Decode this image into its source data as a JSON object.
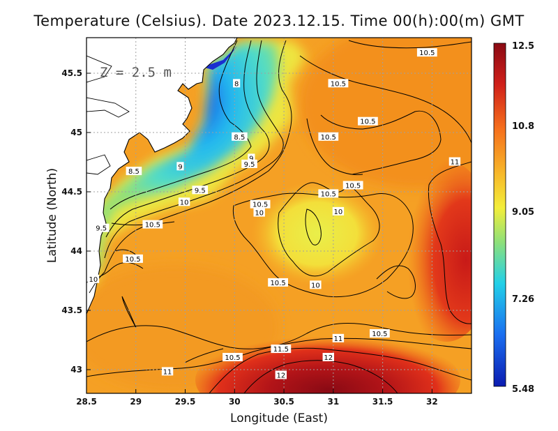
{
  "title": "Temperature (Celsius). Date 2023.12.15. Time 00(h):00(m) GMT",
  "depth_label": "Z = 2.5 m",
  "colors": {
    "background": "#ffffff",
    "land": "#ffffff",
    "coast": "#000000",
    "grid": "#9a9a9a",
    "contour": "#000000",
    "cold": "#0b1bb0",
    "cyan": "#22c8e8",
    "green": "#8ee07a",
    "yellow": "#f3e83a",
    "orange": "#f7a020",
    "warm": "#f06a1a",
    "hot": "#d0201a",
    "deep": "#8a0a14"
  },
  "chart_data": {
    "type": "heatmap",
    "xlabel": "Longitude (East)",
    "ylabel": "Latitude (North)",
    "xlim": [
      28.5,
      32.4
    ],
    "ylim": [
      42.8,
      45.8
    ],
    "x_ticks": [
      "28.5",
      "29",
      "29.5",
      "30",
      "30.5",
      "31",
      "31.5",
      "32"
    ],
    "x_tick_values": [
      28.5,
      29,
      29.5,
      30,
      30.5,
      31,
      31.5,
      32
    ],
    "y_ticks": [
      "43",
      "43.5",
      "44",
      "44.5",
      "45",
      "45.5"
    ],
    "y_tick_values": [
      43,
      43.5,
      44,
      44.5,
      45,
      45.5
    ],
    "grid": true,
    "colorbar": {
      "labels": [
        "12.5",
        "10.8",
        "9.05",
        "7.26",
        "5.48"
      ],
      "values": [
        12.5,
        10.8,
        9.05,
        7.26,
        5.48
      ],
      "min": 5.48,
      "max": 12.5,
      "placement": "right"
    },
    "contour_labels": [
      {
        "text": "10.5",
        "lon": 31.95,
        "lat": 45.67
      },
      {
        "text": "10.5",
        "lon": 31.05,
        "lat": 45.41
      },
      {
        "text": "10.5",
        "lon": 31.35,
        "lat": 45.09
      },
      {
        "text": "10.5",
        "lon": 30.95,
        "lat": 44.96
      },
      {
        "text": "11",
        "lon": 32.23,
        "lat": 44.75
      },
      {
        "text": "10.5",
        "lon": 31.2,
        "lat": 44.55
      },
      {
        "text": "10.5",
        "lon": 30.95,
        "lat": 44.48
      },
      {
        "text": "10",
        "lon": 30.25,
        "lat": 44.32
      },
      {
        "text": "10",
        "lon": 31.05,
        "lat": 44.33
      },
      {
        "text": "10.5",
        "lon": 30.26,
        "lat": 44.39
      },
      {
        "text": "8",
        "lon": 30.02,
        "lat": 45.41
      },
      {
        "text": "8.5",
        "lon": 30.05,
        "lat": 44.96
      },
      {
        "text": "9",
        "lon": 30.17,
        "lat": 44.78
      },
      {
        "text": "9.5",
        "lon": 30.15,
        "lat": 44.73
      },
      {
        "text": "9",
        "lon": 29.45,
        "lat": 44.71
      },
      {
        "text": "8.5",
        "lon": 28.98,
        "lat": 44.67
      },
      {
        "text": "9.5",
        "lon": 29.65,
        "lat": 44.51
      },
      {
        "text": "10",
        "lon": 29.49,
        "lat": 44.41
      },
      {
        "text": "10.5",
        "lon": 29.17,
        "lat": 44.22
      },
      {
        "text": "9.5",
        "lon": 28.65,
        "lat": 44.19
      },
      {
        "text": "10.5",
        "lon": 28.97,
        "lat": 43.93
      },
      {
        "text": "10",
        "lon": 28.57,
        "lat": 43.76
      },
      {
        "text": "10.5",
        "lon": 30.44,
        "lat": 43.73
      },
      {
        "text": "10",
        "lon": 30.82,
        "lat": 43.71
      },
      {
        "text": "10.5",
        "lon": 31.47,
        "lat": 43.3
      },
      {
        "text": "11",
        "lon": 31.05,
        "lat": 43.26
      },
      {
        "text": "11.5",
        "lon": 30.47,
        "lat": 43.17
      },
      {
        "text": "10.5",
        "lon": 29.98,
        "lat": 43.1
      },
      {
        "text": "12",
        "lon": 30.95,
        "lat": 43.1
      },
      {
        "text": "11",
        "lon": 29.32,
        "lat": 42.98
      },
      {
        "text": "12",
        "lon": 30.47,
        "lat": 42.95
      }
    ]
  }
}
